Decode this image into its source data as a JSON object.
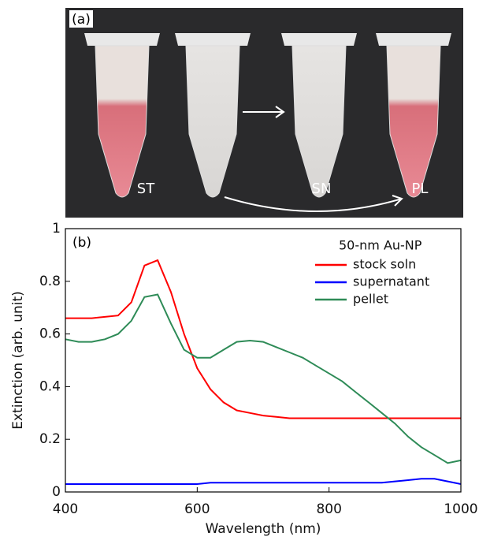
{
  "photo": {
    "panel_label": "(a)",
    "tube_labels": [
      "ST",
      "SN",
      "PL"
    ]
  },
  "chart_data": {
    "type": "line",
    "panel_label": "(b)",
    "legend_title": "50-nm Au-NP",
    "x_label": "Wavelength (nm)",
    "y_label": "Extinction (arb. unit)",
    "x": [
      400,
      420,
      440,
      460,
      480,
      500,
      520,
      540,
      560,
      580,
      600,
      620,
      640,
      660,
      680,
      700,
      720,
      740,
      760,
      780,
      800,
      820,
      840,
      860,
      880,
      900,
      920,
      940,
      960,
      980,
      1000
    ],
    "series": [
      {
        "name": "stock soln",
        "color": "#ff0000",
        "values": [
          0.66,
          0.66,
          0.66,
          0.665,
          0.67,
          0.72,
          0.86,
          0.88,
          0.76,
          0.6,
          0.47,
          0.39,
          0.34,
          0.31,
          0.3,
          0.29,
          0.285,
          0.28,
          0.28,
          0.28,
          0.28,
          0.28,
          0.28,
          0.28,
          0.28,
          0.28,
          0.28,
          0.28,
          0.28,
          0.28,
          0.28
        ]
      },
      {
        "name": "supernatant",
        "color": "#0000ff",
        "values": [
          0.03,
          0.03,
          0.03,
          0.03,
          0.03,
          0.03,
          0.03,
          0.03,
          0.03,
          0.03,
          0.03,
          0.035,
          0.035,
          0.035,
          0.035,
          0.035,
          0.035,
          0.035,
          0.035,
          0.035,
          0.035,
          0.035,
          0.035,
          0.035,
          0.035,
          0.04,
          0.045,
          0.05,
          0.05,
          0.04,
          0.03
        ]
      },
      {
        "name": "pellet",
        "color": "#2e8b57",
        "values": [
          0.58,
          0.57,
          0.57,
          0.58,
          0.6,
          0.65,
          0.74,
          0.75,
          0.64,
          0.54,
          0.51,
          0.51,
          0.54,
          0.57,
          0.575,
          0.57,
          0.55,
          0.53,
          0.51,
          0.48,
          0.45,
          0.42,
          0.38,
          0.34,
          0.3,
          0.26,
          0.21,
          0.17,
          0.14,
          0.11,
          0.12
        ]
      }
    ],
    "xlim": [
      400,
      1000
    ],
    "xticks": [
      400,
      600,
      800,
      1000
    ],
    "ylim": [
      0,
      1
    ],
    "yticks": [
      0,
      0.2,
      0.4,
      0.6,
      0.8,
      1
    ],
    "legend": "upper right"
  }
}
